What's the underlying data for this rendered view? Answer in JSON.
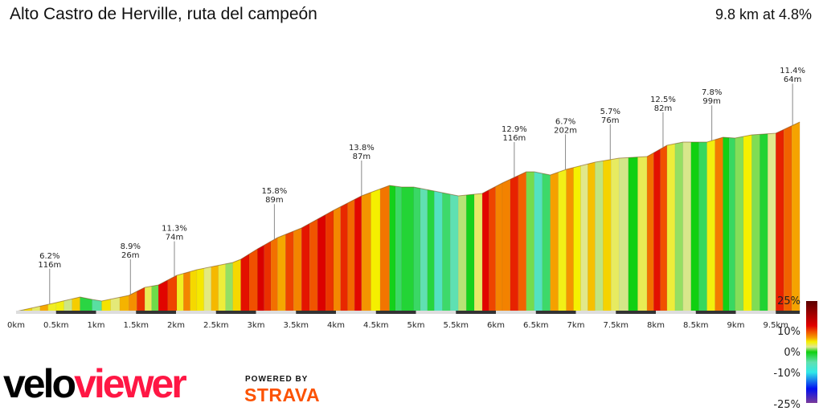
{
  "header": {
    "title": "Alto Castro de Herville, ruta del campeón",
    "summary": "9.8 km at 4.8%"
  },
  "chart_data": {
    "type": "area",
    "title": "Alto Castro de Herville, ruta del campeón",
    "xlabel": "",
    "ylabel": "",
    "xlim": [
      0,
      9.8
    ],
    "x_unit": "km",
    "x_ticks": [
      "0km",
      "0.5km",
      "1km",
      "1.5km",
      "2km",
      "2.5km",
      "3km",
      "3.5km",
      "4km",
      "4.5km",
      "5km",
      "5.5km",
      "6km",
      "6.5km",
      "7km",
      "7.5km",
      "8km",
      "8.5km",
      "9km",
      "9.5km"
    ],
    "profile": {
      "km": [
        0,
        0.5,
        0.8,
        0.95,
        1.07,
        1.41,
        1.61,
        1.78,
        2.01,
        2.26,
        2.71,
        2.81,
        3.02,
        3.27,
        3.57,
        3.97,
        4.32,
        4.67,
        4.82,
        4.97,
        5.23,
        5.53,
        5.83,
        6.08,
        6.38,
        6.48,
        6.68,
        6.88,
        7.24,
        7.54,
        7.89,
        8.14,
        8.34,
        8.64,
        8.84,
        8.99,
        9.2,
        9.5,
        9.8
      ],
      "elevation_gain_m": [
        0,
        22,
        36,
        30,
        26,
        40,
        60,
        66,
        90,
        104,
        122,
        130,
        156,
        184,
        208,
        252,
        288,
        314,
        310,
        310,
        300,
        288,
        294,
        320,
        348,
        348,
        340,
        354,
        372,
        382,
        386,
        414,
        422,
        422,
        434,
        432,
        440,
        444,
        472
      ]
    },
    "annotations": [
      {
        "km": 0.42,
        "gradient": "6.2%",
        "length": "116m"
      },
      {
        "km": 1.43,
        "gradient": "8.9%",
        "length": "26m"
      },
      {
        "km": 1.98,
        "gradient": "11.3%",
        "length": "74m"
      },
      {
        "km": 3.23,
        "gradient": "15.8%",
        "length": "89m"
      },
      {
        "km": 4.32,
        "gradient": "13.8%",
        "length": "87m"
      },
      {
        "km": 6.23,
        "gradient": "12.9%",
        "length": "116m"
      },
      {
        "km": 6.87,
        "gradient": "6.7%",
        "length": "202m"
      },
      {
        "km": 7.43,
        "gradient": "5.7%",
        "length": "76m"
      },
      {
        "km": 8.09,
        "gradient": "12.5%",
        "length": "82m"
      },
      {
        "km": 8.7,
        "gradient": "7.8%",
        "length": "99m"
      },
      {
        "km": 9.71,
        "gradient": "11.4%",
        "length": "64m"
      }
    ],
    "legend": {
      "labels": [
        "25%",
        "10%",
        "0%",
        "-10%",
        "-25%"
      ],
      "gradient_stops": [
        {
          "pct": 25,
          "color": "#5a0000"
        },
        {
          "pct": 13,
          "color": "#e00000"
        },
        {
          "pct": 10,
          "color": "#f05000"
        },
        {
          "pct": 7,
          "color": "#f5a000"
        },
        {
          "pct": 5,
          "color": "#f5f000"
        },
        {
          "pct": 2.5,
          "color": "#e0e890"
        },
        {
          "pct": 0,
          "color": "#10d010"
        },
        {
          "pct": -5,
          "color": "#60e0b0"
        },
        {
          "pct": -10,
          "color": "#30e8e8"
        },
        {
          "pct": -18,
          "color": "#0010f0"
        },
        {
          "pct": -25,
          "color": "#7a3a9a"
        }
      ]
    }
  },
  "footer": {
    "logo_velo": "velo",
    "logo_viewer": "viewer",
    "powered_by": "POWERED BY",
    "strava": "STRAVA"
  }
}
